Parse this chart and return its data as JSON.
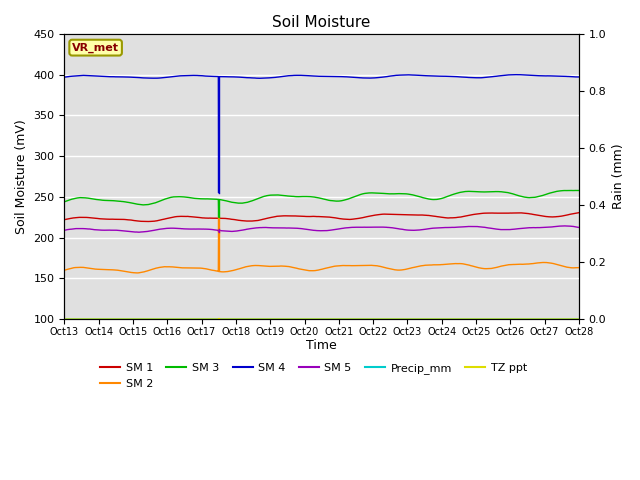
{
  "title": "Soil Moisture",
  "ylabel_left": "Soil Moisture (mV)",
  "ylabel_right": "Rain (mm)",
  "xlabel": "Time",
  "ylim_left": [
    100,
    450
  ],
  "ylim_right": [
    0.0,
    1.0
  ],
  "yticks_left": [
    100,
    150,
    200,
    250,
    300,
    350,
    400,
    450
  ],
  "yticks_right": [
    0.0,
    0.2,
    0.4,
    0.6,
    0.8,
    1.0
  ],
  "xtick_labels": [
    "Oct 13",
    "Oct 14",
    "Oct 15",
    "Oct 16",
    "Oct 17",
    "Oct 18",
    "Oct 19",
    "Oct 20",
    "Oct 21",
    "Oct 22",
    "Oct 23",
    "Oct 24",
    "Oct 25",
    "Oct 26",
    "Oct 27",
    "Oct 28"
  ],
  "site_label": "VR_met",
  "bg_color": "#e0e0e0",
  "sm1_color": "#cc0000",
  "sm2_color": "#ff8800",
  "sm3_color": "#00bb00",
  "sm4_color": "#0000cc",
  "sm5_color": "#9900bb",
  "precip_color": "#00cccc",
  "tz_color": "#dddd00",
  "sm1_base": 222,
  "sm2_base": 160,
  "sm3_base": 244,
  "sm4_base": 397,
  "sm5_base": 209,
  "precip_base": 100,
  "tz_base": 100,
  "spike_day": 4.5,
  "n_days": 16,
  "legend_row1": [
    "SM 1",
    "SM 2",
    "SM 3",
    "SM 4",
    "SM 5",
    "Precip_mm"
  ],
  "legend_row2": [
    "TZ ppt"
  ]
}
